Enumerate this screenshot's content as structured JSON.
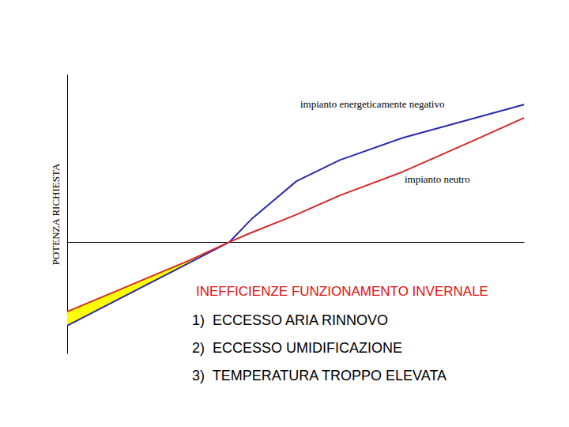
{
  "chart_data": {
    "type": "line",
    "ylabel": "POTENZA RICHIESTA",
    "xlim": [
      0,
      100
    ],
    "ylim": [
      -40,
      60
    ],
    "tick_labels": false,
    "grid": false,
    "series": [
      {
        "name": "impianto energeticamente negativo",
        "color": "#2b2ba8",
        "x": [
          0,
          35.5,
          40.3,
          50.2,
          59.7,
          73.5,
          100
        ],
        "values": [
          -30,
          0,
          8.2,
          21.9,
          29.5,
          37.5,
          49.4
        ]
      },
      {
        "name": "impianto neutro",
        "color": "#d42a2a",
        "x": [
          0,
          26.8,
          35.5,
          40.3,
          50.2,
          59.7,
          73.5,
          89.1,
          100
        ],
        "values": [
          -25,
          -6.5,
          0,
          3.4,
          9.9,
          16.8,
          25.3,
          36.6,
          44.6
        ]
      }
    ],
    "annotations": [
      "INEFFICIENZE FUNZIONAMENTO INVERNALE",
      "1)  ECCESSO ARIA RINNOVO",
      "2)  ECCESSO UMIDIFICAZIONE",
      "3)  TEMPERATURA TROPPO ELEVATA"
    ]
  }
}
